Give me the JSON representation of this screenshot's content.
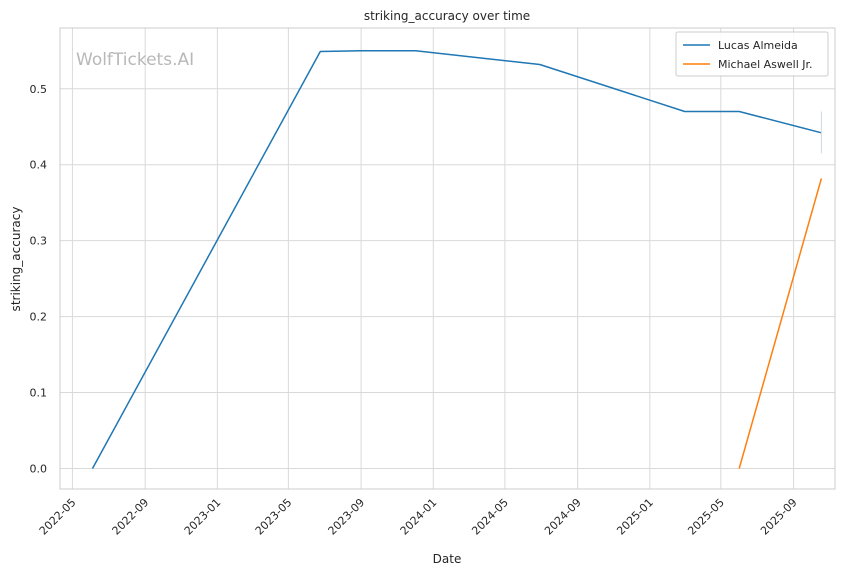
{
  "chart_data": {
    "type": "line",
    "title": "striking_accuracy over time",
    "xlabel": "Date",
    "ylabel": "striking_accuracy",
    "watermark": "WolfTickets.AI",
    "x_ticks": [
      "2022-05",
      "2022-09",
      "2023-01",
      "2023-05",
      "2023-09",
      "2024-01",
      "2024-05",
      "2024-09",
      "2025-01",
      "2025-05",
      "2025-09"
    ],
    "y_ticks": [
      "0.0",
      "0.1",
      "0.2",
      "0.3",
      "0.4",
      "0.5"
    ],
    "xlim": [
      "2022-04-10",
      "2025-11-10"
    ],
    "ylim": [
      -0.027,
      0.58
    ],
    "grid": true,
    "legend_position": "top-right",
    "series": [
      {
        "name": "Lucas Almeida",
        "color": "#1f77b4",
        "points": [
          {
            "x": "2022-06-04",
            "y": 0.0
          },
          {
            "x": "2023-06-24",
            "y": 0.549
          },
          {
            "x": "2023-09-02",
            "y": 0.55
          },
          {
            "x": "2023-12-02",
            "y": 0.55
          },
          {
            "x": "2024-06-29",
            "y": 0.532
          },
          {
            "x": "2025-03-01",
            "y": 0.47
          },
          {
            "x": "2025-06-01",
            "y": 0.47
          },
          {
            "x": "2025-10-18",
            "y": 0.442
          }
        ]
      },
      {
        "name": "Michael Aswell Jr.",
        "color": "#ff7f0e",
        "points": [
          {
            "x": "2025-06-01",
            "y": 0.0
          },
          {
            "x": "2025-10-18",
            "y": 0.382
          }
        ]
      }
    ]
  }
}
